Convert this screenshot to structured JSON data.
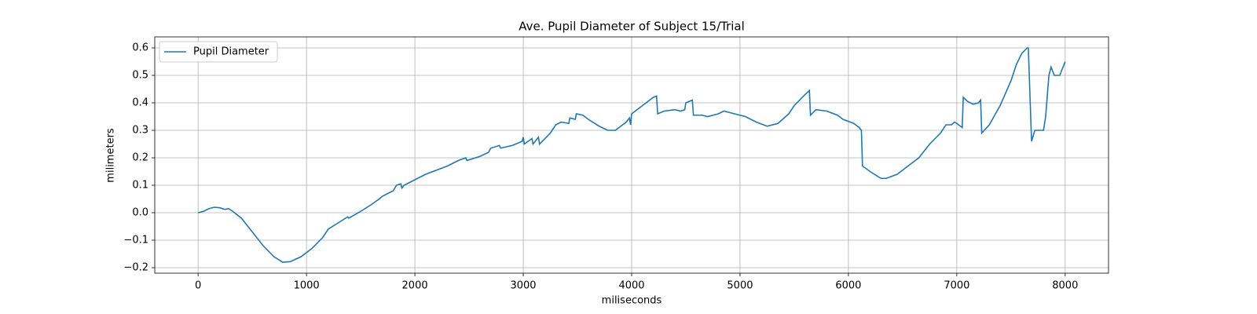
{
  "chart_data": {
    "type": "line",
    "title": "Ave. Pupil Diameter of Subject 15/Trial",
    "xlabel": "miliseconds",
    "ylabel": "milimeters",
    "x": [
      0,
      50,
      100,
      150,
      200,
      250,
      280,
      320,
      400,
      500,
      600,
      700,
      780,
      850,
      950,
      1050,
      1150,
      1200,
      1300,
      1380,
      1390,
      1500,
      1600,
      1670,
      1700,
      1800,
      1830,
      1870,
      1880,
      1900,
      2000,
      2100,
      2200,
      2300,
      2400,
      2470,
      2480,
      2600,
      2680,
      2700,
      2780,
      2790,
      2900,
      2990,
      3000,
      3010,
      3080,
      3090,
      3140,
      3150,
      3250,
      3300,
      3350,
      3420,
      3430,
      3480,
      3490,
      3550,
      3600,
      3700,
      3780,
      3850,
      3950,
      3980,
      3990,
      4000,
      4100,
      4200,
      4230,
      4240,
      4300,
      4400,
      4450,
      4490,
      4500,
      4560,
      4570,
      4650,
      4700,
      4800,
      4850,
      4950,
      5050,
      5150,
      5250,
      5350,
      5450,
      5500,
      5600,
      5640,
      5650,
      5700,
      5800,
      5900,
      5950,
      6050,
      6100,
      6120,
      6130,
      6200,
      6300,
      6350,
      6450,
      6550,
      6650,
      6750,
      6850,
      6900,
      6950,
      6980,
      7000,
      7050,
      7060,
      7100,
      7150,
      7200,
      7220,
      7230,
      7300,
      7400,
      7500,
      7550,
      7600,
      7650,
      7660,
      7690,
      7720,
      7800,
      7820,
      7850,
      7870,
      7900,
      7950,
      8000
    ],
    "series": [
      {
        "name": "Pupil Diameter",
        "color": "#1f77b4",
        "values": [
          0,
          0.005,
          0.015,
          0.02,
          0.018,
          0.012,
          0.015,
          0.005,
          -0.02,
          -0.07,
          -0.12,
          -0.16,
          -0.18,
          -0.178,
          -0.16,
          -0.13,
          -0.09,
          -0.06,
          -0.035,
          -0.015,
          -0.02,
          0.005,
          0.03,
          0.05,
          0.06,
          0.08,
          0.1,
          0.105,
          0.09,
          0.1,
          0.12,
          0.14,
          0.155,
          0.17,
          0.19,
          0.2,
          0.19,
          0.205,
          0.22,
          0.235,
          0.245,
          0.235,
          0.245,
          0.26,
          0.275,
          0.25,
          0.27,
          0.25,
          0.275,
          0.25,
          0.29,
          0.32,
          0.33,
          0.325,
          0.345,
          0.34,
          0.36,
          0.355,
          0.34,
          0.315,
          0.3,
          0.3,
          0.33,
          0.345,
          0.32,
          0.36,
          0.39,
          0.42,
          0.425,
          0.36,
          0.37,
          0.375,
          0.37,
          0.375,
          0.4,
          0.41,
          0.355,
          0.355,
          0.35,
          0.36,
          0.37,
          0.36,
          0.35,
          0.33,
          0.315,
          0.325,
          0.36,
          0.39,
          0.43,
          0.445,
          0.355,
          0.375,
          0.37,
          0.355,
          0.34,
          0.325,
          0.31,
          0.3,
          0.17,
          0.15,
          0.125,
          0.125,
          0.14,
          0.17,
          0.2,
          0.25,
          0.29,
          0.32,
          0.32,
          0.33,
          0.325,
          0.31,
          0.42,
          0.405,
          0.395,
          0.4,
          0.41,
          0.29,
          0.32,
          0.39,
          0.48,
          0.54,
          0.58,
          0.6,
          0.6,
          0.26,
          0.3,
          0.3,
          0.35,
          0.5,
          0.53,
          0.5,
          0.5,
          0.55
        ]
      }
    ],
    "xlim": [
      -400,
      8400
    ],
    "xticks": [
      0,
      1000,
      2000,
      3000,
      4000,
      5000,
      6000,
      7000,
      8000
    ],
    "ylim": [
      -0.22,
      0.64
    ],
    "yticks": [
      {
        "value": -0.2,
        "label": "−0.2"
      },
      {
        "value": -0.1,
        "label": "−0.1"
      },
      {
        "value": 0,
        "label": "0.0"
      },
      0.1,
      0.2,
      0.3,
      0.4,
      0.5,
      0.6
    ],
    "grid": true,
    "legend": "upper left"
  }
}
